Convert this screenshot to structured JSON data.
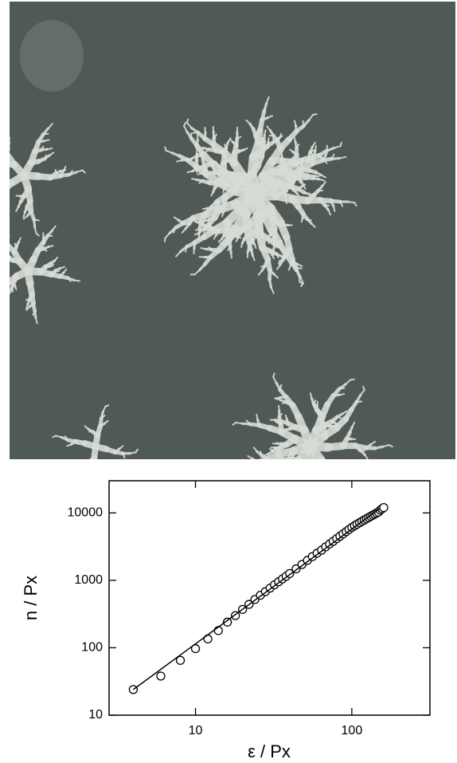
{
  "chart_data": {
    "type": "scatter",
    "xlabel": "ε / Px",
    "ylabel": "n / Px",
    "xscale": "log",
    "yscale": "log",
    "xlim": [
      2.8,
      316
    ],
    "ylim": [
      10,
      30000
    ],
    "xticks": [
      10,
      100
    ],
    "yticks": [
      10,
      100,
      1000,
      10000
    ],
    "series": [
      {
        "kind": "points",
        "color": "#000000",
        "x": [
          4,
          6,
          8,
          10,
          12,
          14,
          16,
          18,
          20,
          22,
          24,
          26,
          28,
          30,
          32,
          34,
          36,
          38,
          40,
          44,
          48,
          52,
          56,
          60,
          64,
          68,
          72,
          76,
          80,
          84,
          88,
          92,
          96,
          100,
          104,
          108,
          112,
          116,
          120,
          124,
          128,
          132,
          136,
          140,
          144,
          148,
          152,
          156,
          160
        ],
        "values": [
          24,
          38,
          65,
          97,
          135,
          180,
          240,
          300,
          370,
          440,
          520,
          600,
          680,
          768,
          859,
          952,
          1050,
          1150,
          1260,
          1480,
          1720,
          1980,
          2250,
          2530,
          2800,
          3140,
          3460,
          3790,
          4150,
          4510,
          4890,
          5280,
          5680,
          6100,
          6450,
          6800,
          7150,
          7500,
          7850,
          8200,
          8550,
          8900,
          9250,
          9600,
          9950,
          10300,
          11000,
          11500,
          12000
        ]
      },
      {
        "kind": "line",
        "color": "#000000",
        "x": [
          4,
          150
        ],
        "values": [
          24,
          11500
        ]
      }
    ]
  }
}
